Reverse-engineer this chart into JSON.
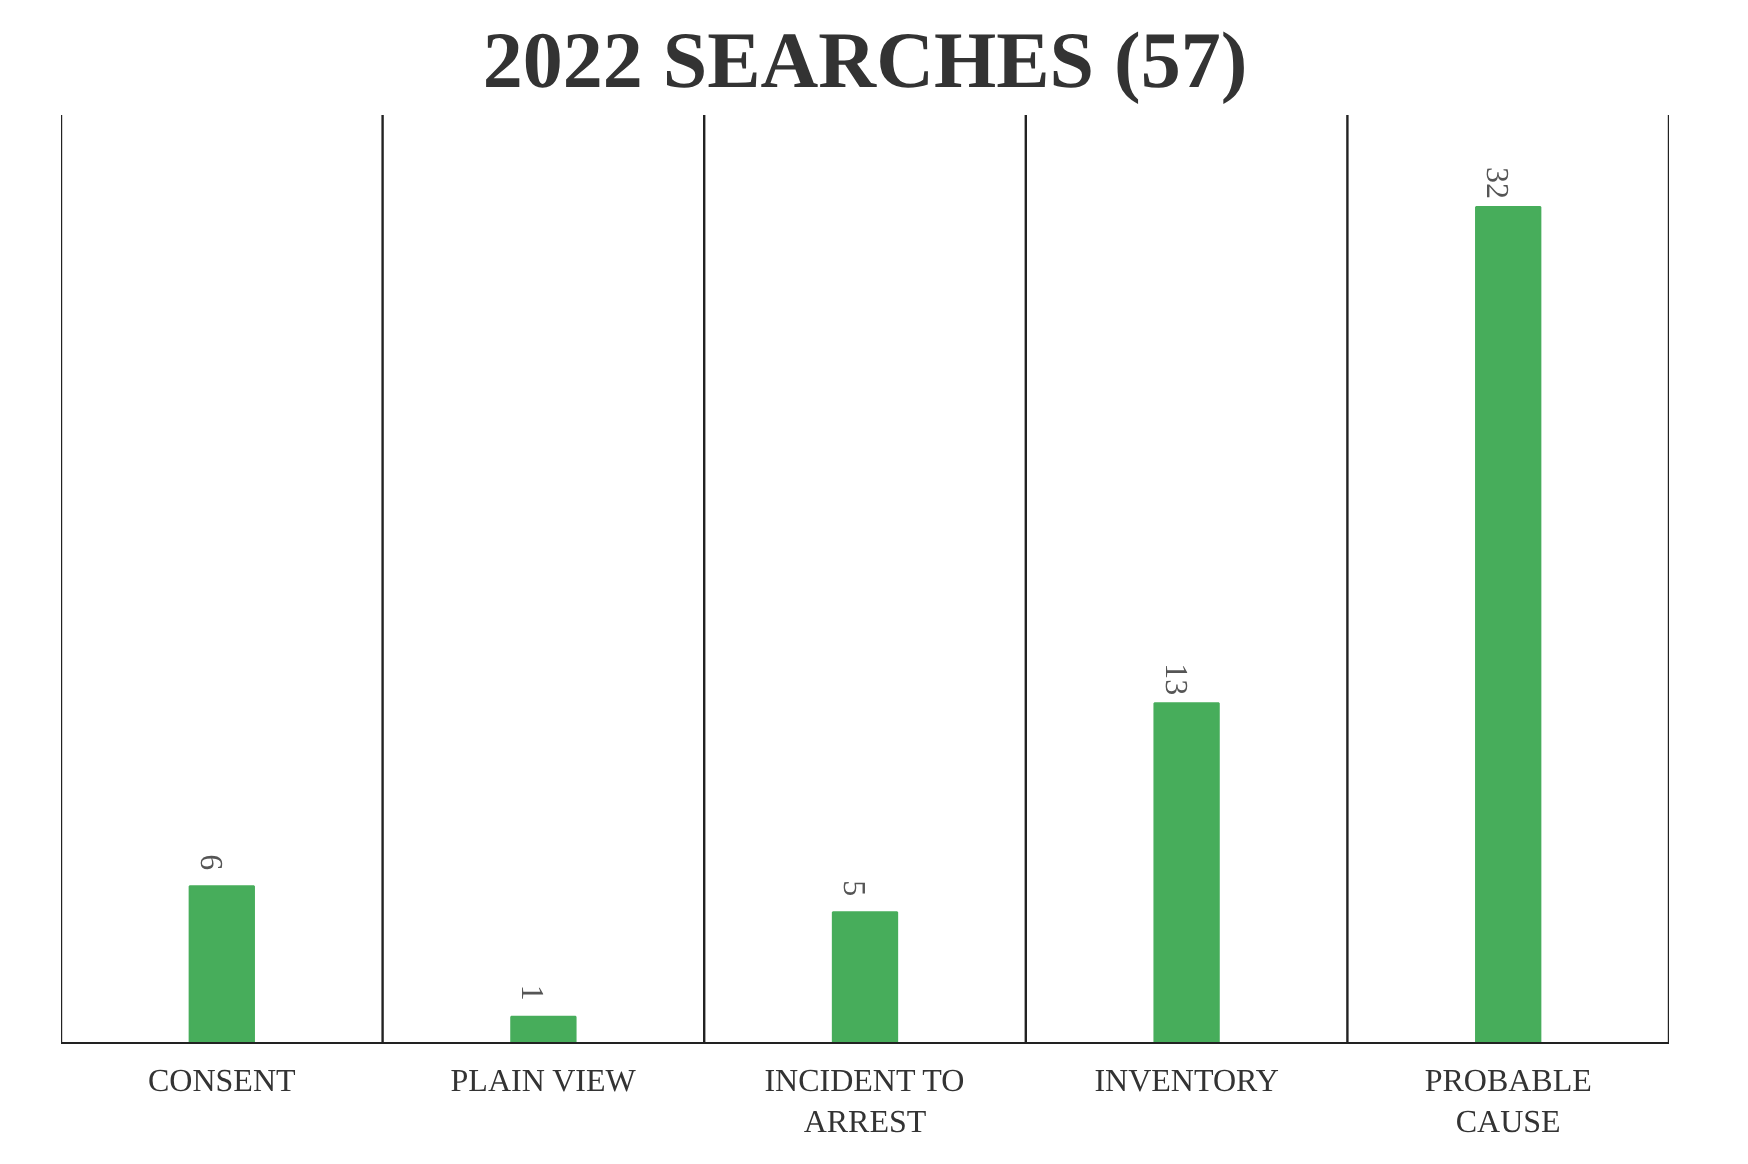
{
  "chart_data": {
    "type": "bar",
    "title": "2022 SEARCHES (57)",
    "categories": [
      "CONSENT",
      "PLAIN VIEW",
      "INCIDENT TO ARREST",
      "INVENTORY",
      "PROBABLE CAUSE"
    ],
    "values": [
      6,
      1,
      5,
      13,
      32
    ],
    "color": "#47ad5b",
    "data_labels": true,
    "grid": "x",
    "tick_labels": "x"
  }
}
